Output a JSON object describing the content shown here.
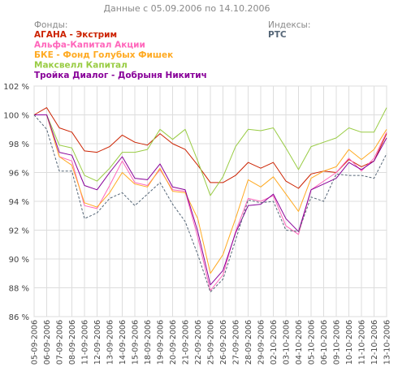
{
  "chart_data": {
    "type": "line",
    "title": "Данные с 05.09.2006 по 14.10.2006",
    "funds_heading": "Фонды:",
    "indices_heading": "Индексы:",
    "ylim": [
      86,
      102
    ],
    "yticks": [
      86,
      88,
      90,
      92,
      94,
      96,
      98,
      100,
      102
    ],
    "ytick_labels": [
      "86 %",
      "88 %",
      "90 %",
      "92 %",
      "94 %",
      "96 %",
      "98 %",
      "100 %",
      "102 %"
    ],
    "grid": true,
    "categories": [
      "05-09-2006",
      "06-09-2006",
      "07-09-2006",
      "08-09-2006",
      "11-09-2006",
      "12-09-2006",
      "13-09-2006",
      "14-09-2006",
      "15-09-2006",
      "18-09-2006",
      "19-09-2006",
      "20-09-2006",
      "21-09-2006",
      "22-09-2006",
      "25-09-2006",
      "26-09-2006",
      "27-09-2006",
      "28-09-2006",
      "29-09-2006",
      "02-10-2006",
      "03-10-2006",
      "04-10-2006",
      "05-10-2006",
      "06-10-2006",
      "09-10-2006",
      "10-10-2006",
      "11-10-2006",
      "12-10-2006",
      "13-10-2006"
    ],
    "series": [
      {
        "name": "АГАНА - Экстрим",
        "color": "#cc2200",
        "dashed": false,
        "values": [
          100.0,
          100.5,
          99.1,
          98.8,
          97.5,
          97.4,
          97.8,
          98.6,
          98.1,
          97.9,
          98.7,
          98.0,
          97.6,
          96.5,
          95.3,
          95.3,
          95.8,
          96.7,
          96.3,
          96.7,
          95.4,
          94.9,
          95.9,
          96.1,
          96.0,
          96.9,
          96.4,
          96.8,
          98.7
        ]
      },
      {
        "name": "Альфа-Капитал Акции",
        "color": "#ff66bb",
        "dashed": false,
        "values": [
          100.0,
          100.0,
          97.1,
          96.8,
          93.7,
          93.5,
          95.1,
          96.8,
          95.3,
          95.1,
          96.2,
          94.8,
          94.7,
          91.5,
          87.8,
          88.9,
          91.9,
          94.2,
          94.0,
          94.4,
          92.3,
          91.7,
          94.8,
          95.4,
          96.0,
          97.0,
          96.1,
          97.0,
          98.8
        ]
      },
      {
        "name": "БКЕ - Фонд Голубых Фишек",
        "color": "#ffaa22",
        "dashed": false,
        "values": [
          100.0,
          100.0,
          97.1,
          96.5,
          93.9,
          93.6,
          94.6,
          96.0,
          95.2,
          95.0,
          96.3,
          94.7,
          94.6,
          92.8,
          89.0,
          90.3,
          92.8,
          95.5,
          95.0,
          95.7,
          94.5,
          93.3,
          95.6,
          96.1,
          96.4,
          97.6,
          96.9,
          97.6,
          99.0
        ]
      },
      {
        "name": "Максвелл Капитал",
        "color": "#99cc44",
        "dashed": false,
        "values": [
          100.0,
          100.0,
          97.9,
          97.7,
          95.8,
          95.4,
          96.3,
          97.4,
          97.4,
          97.6,
          99.0,
          98.3,
          99.0,
          96.8,
          94.4,
          95.7,
          97.8,
          99.0,
          98.9,
          99.1,
          97.7,
          96.2,
          97.8,
          98.1,
          98.4,
          99.1,
          98.8,
          98.8,
          100.5
        ]
      },
      {
        "name": "Тройка Диалог - Добрыня Никитич",
        "color": "#880099",
        "dashed": false,
        "values": [
          100.0,
          100.0,
          97.4,
          97.2,
          95.1,
          94.8,
          96.0,
          97.1,
          95.6,
          95.5,
          96.6,
          95.0,
          94.8,
          91.9,
          88.2,
          89.2,
          91.8,
          93.7,
          93.8,
          94.5,
          92.8,
          91.9,
          94.8,
          95.2,
          95.6,
          96.7,
          96.2,
          96.8,
          98.4
        ]
      },
      {
        "name": "РТС",
        "color": "#556677",
        "dashed": true,
        "values": [
          100.0,
          99.0,
          96.1,
          96.1,
          92.8,
          93.2,
          94.2,
          94.6,
          93.7,
          94.5,
          95.3,
          93.8,
          92.6,
          90.3,
          87.7,
          88.6,
          91.3,
          94.1,
          93.9,
          94.0,
          92.0,
          91.9,
          94.3,
          94.0,
          95.9,
          95.8,
          95.8,
          95.6,
          97.3
        ]
      }
    ]
  }
}
